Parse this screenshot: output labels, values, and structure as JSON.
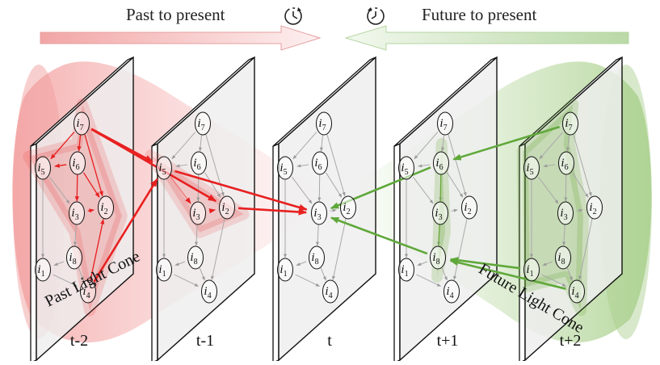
{
  "header": {
    "past_title": "Past to present",
    "future_title": "Future to present",
    "past_clock_icon": "clock-forward-icon",
    "future_clock_icon": "clock-backward-icon"
  },
  "frames": [
    {
      "label": "t-2"
    },
    {
      "label": "t-1"
    },
    {
      "label": "t"
    },
    {
      "label": "t+1"
    },
    {
      "label": "t+2"
    }
  ],
  "node_labels": {
    "base": "i",
    "subs": [
      "1",
      "2",
      "3",
      "4",
      "5",
      "6",
      "7",
      "8"
    ]
  },
  "cones": {
    "past_label": "Past Light Cone",
    "future_label": "Future Light Cone",
    "past_color": "#e83a3a",
    "future_color": "#6aaa3a"
  }
}
